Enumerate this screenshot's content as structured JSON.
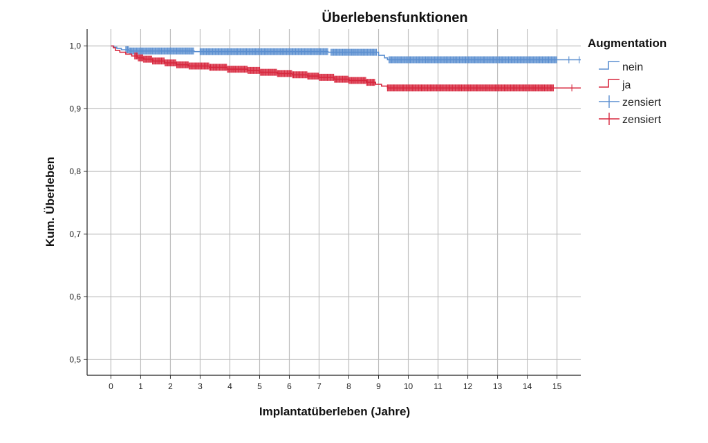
{
  "chart_data": {
    "type": "line",
    "title": "Überlebensfunktionen",
    "xlabel": "Implantatüberleben (Jahre)",
    "ylabel": "Kum. Überleben",
    "xticks": [
      "0",
      "1",
      "2",
      "3",
      "4",
      "5",
      "6",
      "7",
      "8",
      "9",
      "10",
      "11",
      "12",
      "13",
      "14",
      "15"
    ],
    "yticks": [
      "0,5",
      "0,6",
      "0,7",
      "0,8",
      "0,9",
      "1,0"
    ],
    "xlim": [
      -0.8,
      15.8
    ],
    "ylim": [
      0.475,
      1.027
    ],
    "grid": true,
    "legend": {
      "title": "Augmentation",
      "placement": "right",
      "entries": [
        {
          "label": "nein",
          "kind": "step",
          "color": "#5b8fd0"
        },
        {
          "label": "ja",
          "kind": "step",
          "color": "#d7263d"
        },
        {
          "label": "zensiert",
          "kind": "censor",
          "color": "#5b8fd0"
        },
        {
          "label": "zensiert",
          "kind": "censor",
          "color": "#d7263d"
        }
      ]
    },
    "series": [
      {
        "name": "nein",
        "color": "#5b8fd0",
        "steps": [
          [
            0,
            1.0
          ],
          [
            0.1,
            0.998
          ],
          [
            0.2,
            0.996
          ],
          [
            0.35,
            0.994
          ],
          [
            0.6,
            0.992
          ],
          [
            2.8,
            0.991
          ],
          [
            7.3,
            0.99
          ],
          [
            9.0,
            0.985
          ],
          [
            9.2,
            0.981
          ],
          [
            9.3,
            0.978
          ],
          [
            15.8,
            0.978
          ]
        ],
        "censored_dense": [
          [
            0.5,
            2.8
          ],
          [
            3.0,
            7.3
          ],
          [
            7.4,
            8.95
          ],
          [
            9.35,
            15.0
          ]
        ],
        "censored_sparse": [
          15.4,
          15.75
        ]
      },
      {
        "name": "ja",
        "color": "#d7263d",
        "steps": [
          [
            0,
            1.0
          ],
          [
            0.08,
            0.997
          ],
          [
            0.15,
            0.993
          ],
          [
            0.3,
            0.99
          ],
          [
            0.5,
            0.987
          ],
          [
            0.7,
            0.984
          ],
          [
            0.9,
            0.981
          ],
          [
            1.1,
            0.979
          ],
          [
            1.4,
            0.976
          ],
          [
            1.8,
            0.973
          ],
          [
            2.2,
            0.97
          ],
          [
            2.6,
            0.968
          ],
          [
            3.3,
            0.966
          ],
          [
            3.9,
            0.963
          ],
          [
            4.6,
            0.961
          ],
          [
            5.0,
            0.958
          ],
          [
            5.6,
            0.956
          ],
          [
            6.1,
            0.954
          ],
          [
            6.6,
            0.952
          ],
          [
            7.0,
            0.95
          ],
          [
            7.5,
            0.947
          ],
          [
            8.0,
            0.945
          ],
          [
            8.6,
            0.942
          ],
          [
            8.9,
            0.939
          ],
          [
            9.1,
            0.936
          ],
          [
            9.3,
            0.933
          ],
          [
            15.8,
            0.933
          ]
        ],
        "censored_dense": [
          [
            0.8,
            8.9
          ],
          [
            9.3,
            14.9
          ]
        ],
        "censored_sparse": [
          15.5
        ]
      }
    ]
  }
}
